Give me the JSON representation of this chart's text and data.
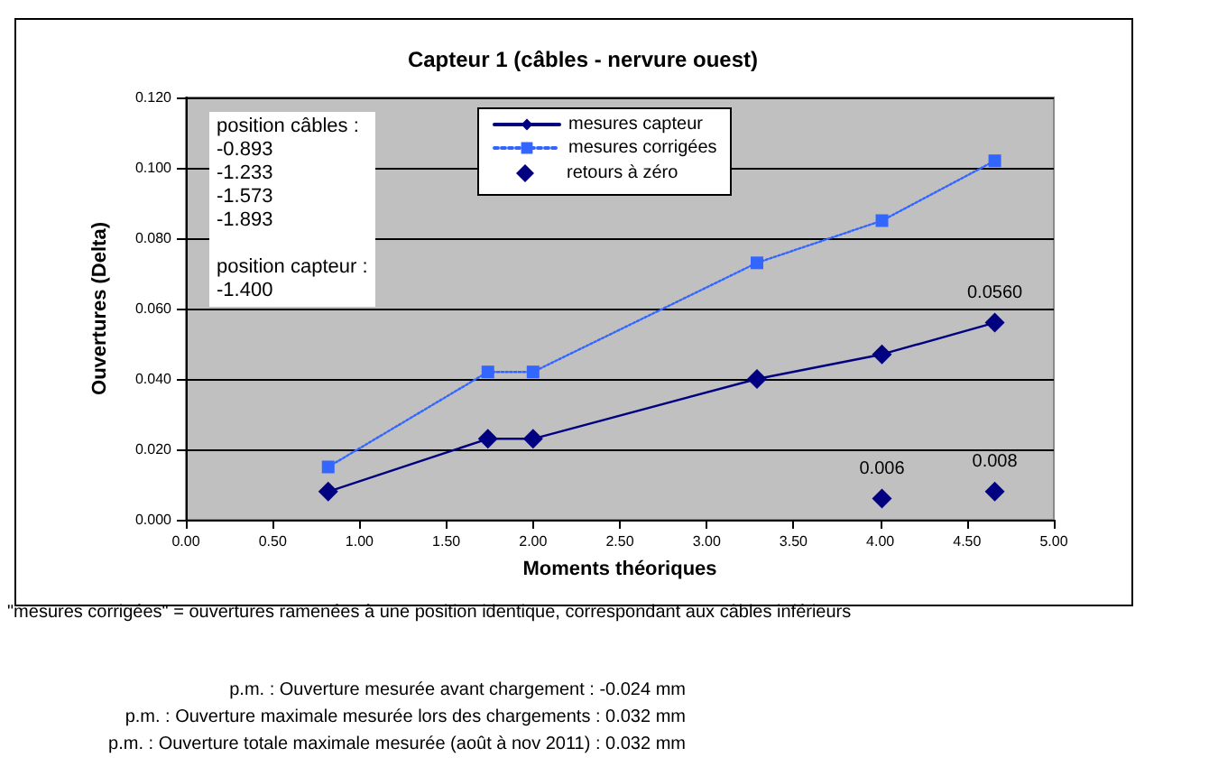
{
  "chart_data": {
    "type": "line",
    "title": "Capteur 1 (câbles - nervure ouest)",
    "xlabel": "Moments théoriques",
    "ylabel": "Ouvertures (Delta)",
    "xlim": [
      0,
      5
    ],
    "xticks": [
      {
        "value": 0,
        "label": "0.00"
      },
      {
        "value": 0.5,
        "label": "0.50"
      },
      {
        "value": 1,
        "label": "1.00"
      },
      {
        "value": 1.5,
        "label": "1.50"
      },
      {
        "value": 2,
        "label": "2.00"
      },
      {
        "value": 2.5,
        "label": "2.50"
      },
      {
        "value": 3,
        "label": "3.00"
      },
      {
        "value": 3.5,
        "label": "3.50"
      },
      {
        "value": 4,
        "label": "4.00"
      },
      {
        "value": 4.5,
        "label": "4.50"
      },
      {
        "value": 5,
        "label": "5.00"
      }
    ],
    "ylim": [
      0,
      0.12
    ],
    "yticks": [
      {
        "value": 0,
        "label": "0.000"
      },
      {
        "value": 0.02,
        "label": "0.020"
      },
      {
        "value": 0.04,
        "label": "0.040"
      },
      {
        "value": 0.06,
        "label": "0.060"
      },
      {
        "value": 0.08,
        "label": "0.080"
      },
      {
        "value": 0.1,
        "label": "0.100"
      },
      {
        "value": 0.12,
        "label": "0.120"
      }
    ],
    "grid": "y",
    "legend": "top",
    "series": [
      {
        "name": "mesures capteur",
        "type": "line",
        "color": "#000080",
        "marker": "diamond",
        "line_style": "solid",
        "x": [
          0.82,
          1.74,
          2.0,
          3.29,
          4.01,
          4.66
        ],
        "values": [
          0.008,
          0.023,
          0.023,
          0.04,
          0.047,
          0.056
        ],
        "value_labels": [
          null,
          null,
          null,
          null,
          null,
          "0.0560"
        ]
      },
      {
        "name": "mesures corrigées",
        "type": "line",
        "color": "#3366ff",
        "marker": "square",
        "line_style": "dotted",
        "x": [
          0.82,
          1.74,
          2.0,
          3.29,
          4.01,
          4.66
        ],
        "values": [
          0.015,
          0.042,
          0.042,
          0.073,
          0.085,
          0.102
        ]
      },
      {
        "name": "retours à zéro",
        "type": "scatter",
        "color": "#000080",
        "marker": "diamond",
        "x": [
          4.01,
          4.66
        ],
        "values": [
          0.006,
          0.008
        ],
        "value_labels": [
          "0.006",
          "0.008"
        ]
      }
    ],
    "annotations": [
      "position câbles :\n-0.893\n-1.233\n-1.573\n-1.893\n\nposition capteur :\n-1.400",
      "\"mesures corrigées\" = ouvertures ramenées à une position identique, correspondant aux câbles inférieurs",
      "p.m. : Ouverture mesurée avant chargement : -0.024 mm",
      "p.m. : Ouverture maximale mesurée lors des chargements : 0.032 mm",
      "p.m. : Ouverture totale maximale mesurée (août à nov 2011) : 0.032 mm"
    ]
  }
}
